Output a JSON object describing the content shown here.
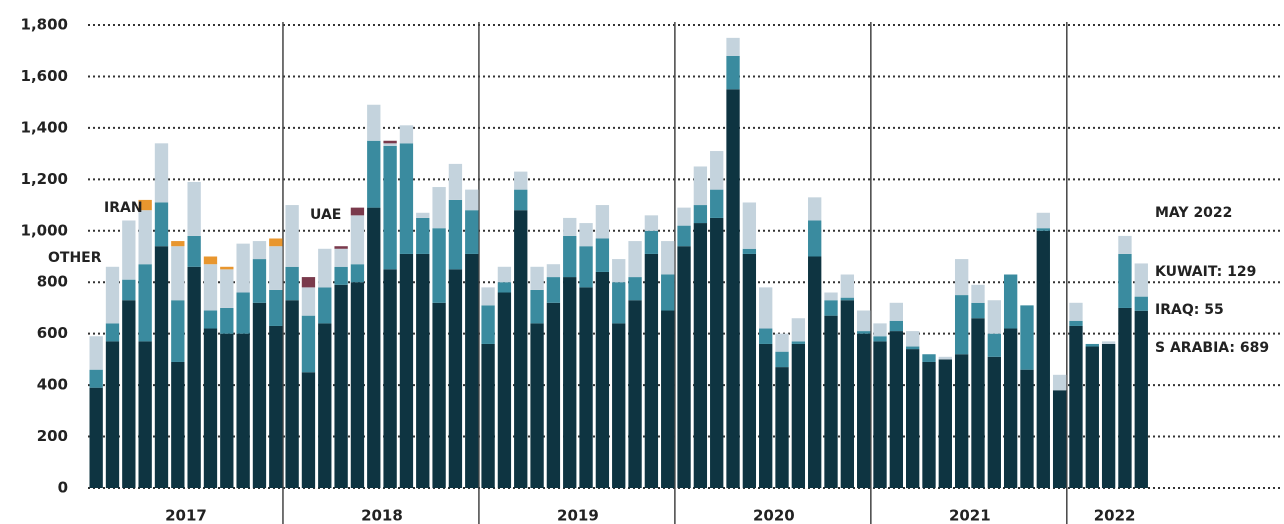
{
  "chart_data": {
    "type": "stacked_bar",
    "categories": [
      null,
      null,
      null,
      null,
      null,
      null,
      null,
      null,
      null,
      null,
      null,
      null,
      null,
      null,
      null,
      null,
      null,
      null,
      null,
      null,
      null,
      null,
      null,
      null,
      null,
      null,
      null,
      null,
      null,
      null,
      null,
      null,
      null,
      null,
      null,
      null,
      null,
      null,
      null,
      null,
      null,
      null,
      null,
      null,
      null,
      null,
      null,
      null,
      null,
      null,
      null,
      null,
      null,
      null,
      null,
      null,
      null,
      null,
      null,
      null,
      null,
      null,
      null,
      null,
      null
    ],
    "year_labels": [
      "2017",
      "2018",
      "2019",
      "2020",
      "2021",
      "2022"
    ],
    "year_months": [
      12,
      12,
      12,
      12,
      12,
      5
    ],
    "ylim": [
      0,
      1800
    ],
    "yticks": [
      0,
      200,
      400,
      600,
      800,
      {
        "value": 1000,
        "label": "1,000"
      },
      {
        "value": 1200,
        "label": "1,200"
      },
      {
        "value": 1400,
        "label": "1,400"
      },
      {
        "value": 1600,
        "label": "1,600"
      },
      {
        "value": 1800,
        "label": "1,800"
      }
    ],
    "grid": true,
    "series": [
      {
        "name": "S ARABIA",
        "color": "#0e3441",
        "values": [
          390,
          570,
          730,
          570,
          940,
          490,
          860,
          620,
          600,
          600,
          720,
          630,
          730,
          450,
          640,
          790,
          800,
          1090,
          850,
          910,
          910,
          720,
          850,
          910,
          560,
          760,
          1080,
          640,
          720,
          820,
          780,
          840,
          640,
          730,
          910,
          690,
          940,
          1030,
          1050,
          1550,
          910,
          560,
          470,
          560,
          900,
          670,
          730,
          600,
          570,
          610,
          540,
          490,
          500,
          520,
          660,
          510,
          620,
          460,
          1000,
          380,
          630,
          550,
          560,
          700,
          689
        ]
      },
      {
        "name": "IRAQ",
        "color": "#3a8b9f",
        "values": [
          70,
          70,
          80,
          300,
          170,
          240,
          120,
          70,
          100,
          160,
          170,
          140,
          130,
          220,
          140,
          70,
          70,
          260,
          480,
          430,
          140,
          290,
          270,
          170,
          150,
          40,
          80,
          130,
          100,
          160,
          160,
          130,
          160,
          90,
          90,
          140,
          80,
          70,
          110,
          130,
          20,
          60,
          60,
          10,
          140,
          60,
          10,
          10,
          20,
          40,
          10,
          30,
          0,
          230,
          60,
          90,
          210,
          250,
          10,
          0,
          20,
          10,
          0,
          210,
          55
        ]
      },
      {
        "name": "KUWAIT",
        "color": "#c4d3dd",
        "values": [
          130,
          220,
          230,
          210,
          230,
          210,
          210,
          180,
          150,
          190,
          70,
          170,
          240,
          110,
          150,
          70,
          190,
          140,
          10,
          70,
          20,
          160,
          140,
          80,
          70,
          60,
          70,
          90,
          50,
          70,
          90,
          130,
          90,
          140,
          60,
          130,
          70,
          150,
          150,
          70,
          180,
          160,
          70,
          90,
          90,
          30,
          90,
          80,
          50,
          70,
          60,
          0,
          10,
          140,
          70,
          130,
          0,
          0,
          60,
          60,
          70,
          0,
          10,
          70,
          129
        ]
      },
      {
        "name": "IRAN",
        "color": "#e8962e",
        "values": [
          0,
          0,
          0,
          40,
          0,
          20,
          0,
          30,
          10,
          0,
          0,
          30,
          0,
          0,
          0,
          0,
          0,
          0,
          0,
          0,
          0,
          0,
          0,
          0,
          0,
          0,
          0,
          0,
          0,
          0,
          0,
          0,
          0,
          0,
          0,
          0,
          0,
          0,
          0,
          0,
          0,
          0,
          0,
          0,
          0,
          0,
          0,
          0,
          0,
          0,
          0,
          0,
          0,
          0,
          0,
          0,
          0,
          0,
          0,
          0,
          0,
          0,
          0,
          0,
          0
        ]
      },
      {
        "name": "UAE",
        "color": "#7a3a4c",
        "values": [
          0,
          0,
          0,
          0,
          0,
          0,
          0,
          0,
          0,
          0,
          0,
          0,
          0,
          40,
          0,
          10,
          30,
          0,
          10,
          0,
          0,
          0,
          0,
          0,
          0,
          0,
          0,
          0,
          0,
          0,
          0,
          0,
          0,
          0,
          0,
          0,
          0,
          0,
          0,
          0,
          0,
          0,
          0,
          0,
          0,
          0,
          0,
          0,
          0,
          0,
          0,
          0,
          0,
          0,
          0,
          0,
          0,
          0,
          0,
          0,
          0,
          0,
          0,
          0,
          0
        ]
      }
    ],
    "annotations": [
      {
        "text": "IRAN",
        "color": "#e8962e"
      },
      {
        "text": "UAE",
        "color": "#7a3a4c"
      },
      {
        "text": "OTHER",
        "color": "#8a8f6a"
      },
      {
        "text": "MAY 2022",
        "color": "#222222"
      },
      {
        "text": "KUWAIT: 129",
        "color": "#c4d3dd"
      },
      {
        "text": "IRAQ: 55",
        "color": "#3a8b9f"
      },
      {
        "text": "S ARABIA: 689",
        "color": "#0e3441"
      }
    ]
  }
}
